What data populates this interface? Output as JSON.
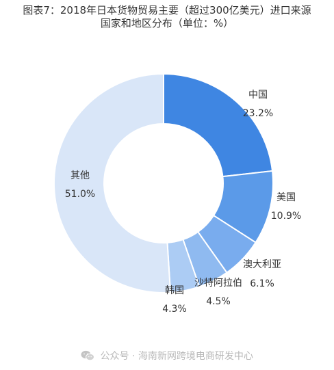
{
  "chart_data": {
    "type": "pie",
    "title_line1": "图表7：2018年日本货物贸易主要（超过300亿美元）进口来源",
    "title_line2": "国家和地区分布（单位：%）",
    "categories": [
      "中国",
      "美国",
      "澳大利亚",
      "沙特阿拉伯",
      "韩国",
      "其他"
    ],
    "values": [
      23.2,
      10.9,
      6.1,
      4.5,
      4.3,
      51.0
    ],
    "value_labels": [
      "23.2%",
      "10.9%",
      "6.1%",
      "4.5%",
      "4.3%",
      "51.0%"
    ],
    "colors": [
      "#3f86e2",
      "#5b9ae8",
      "#79acee",
      "#8fbaf0",
      "#acccf4",
      "#d9e6f8"
    ],
    "donut": true,
    "start_angle": "12 o'clock",
    "direction": "clockwise"
  },
  "watermark": {
    "icon": "wechat-icon",
    "text": "公众号 · 海南新网跨境电商研发中心"
  }
}
